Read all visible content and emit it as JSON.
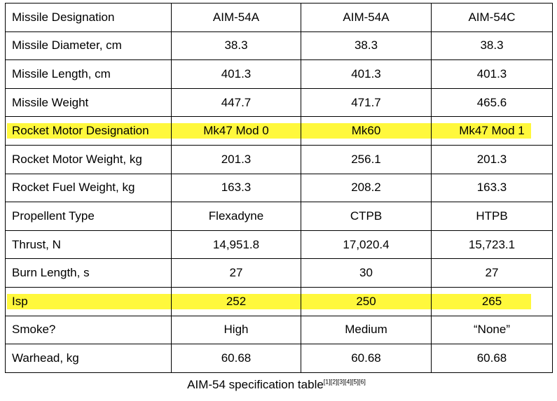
{
  "table": {
    "header": {
      "label": "Missile Designation",
      "cols": [
        "AIM-54A",
        "AIM-54A",
        "AIM-54C"
      ]
    },
    "rows": [
      {
        "label": "Missile Diameter, cm",
        "values": [
          "38.3",
          "38.3",
          "38.3"
        ]
      },
      {
        "label": "Missile Length, cm",
        "values": [
          "401.3",
          "401.3",
          "401.3"
        ]
      },
      {
        "label": "Missile Weight",
        "values": [
          "447.7",
          "471.7",
          "465.6"
        ]
      },
      {
        "label": "Rocket Motor Designation",
        "values": [
          "Mk47 Mod 0",
          "Mk60",
          "Mk47 Mod 1"
        ],
        "highlight": true
      },
      {
        "label": "Rocket Motor Weight, kg",
        "values": [
          "201.3",
          "256.1",
          "201.3"
        ]
      },
      {
        "label": "Rocket Fuel Weight, kg",
        "values": [
          "163.3",
          "208.2",
          "163.3"
        ]
      },
      {
        "label": "Propellent Type",
        "values": [
          "Flexadyne",
          "CTPB",
          "HTPB"
        ]
      },
      {
        "label": "Thrust, N",
        "values": [
          "14,951.8",
          "17,020.4",
          "15,723.1"
        ]
      },
      {
        "label": "Burn Length, s",
        "values": [
          "27",
          "30",
          "27"
        ]
      },
      {
        "label": "Isp",
        "values": [
          "252",
          "250",
          "265"
        ],
        "highlight": true
      },
      {
        "label": "Smoke?",
        "values": [
          "High",
          "Medium",
          "“None”"
        ]
      },
      {
        "label": "Warhead, kg",
        "values": [
          "60.68",
          "60.68",
          "60.68"
        ]
      }
    ]
  },
  "caption": {
    "text": "AIM-54 specification table",
    "refs": "[1][2][3][4][5][6]"
  },
  "colors": {
    "highlight": "#fff83c",
    "border": "#000000"
  }
}
